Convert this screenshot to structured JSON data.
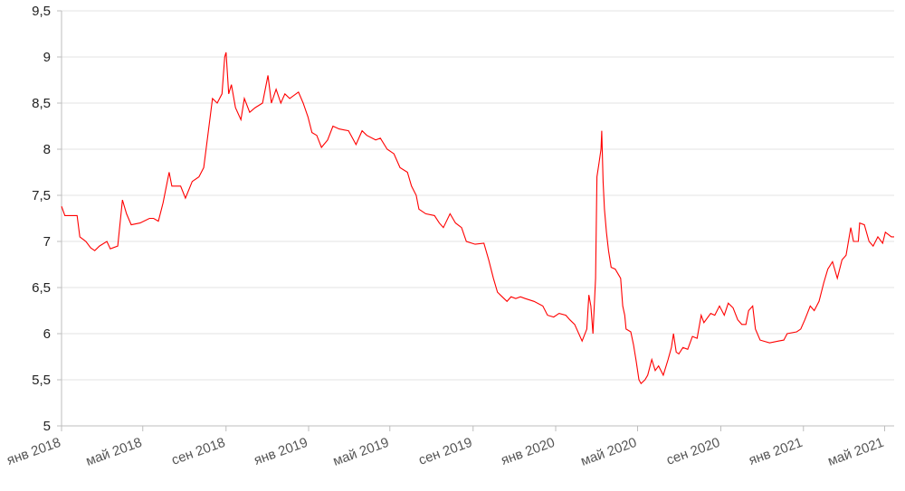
{
  "chart_data": {
    "type": "line",
    "title": "",
    "xlabel": "",
    "ylabel": "",
    "xlim": [
      "2018-01-01",
      "2021-05-15"
    ],
    "ylim": [
      5,
      9.5
    ],
    "grid": "horizontal",
    "line_color": "#ff0000",
    "grid_color": "#e3e3e3",
    "axis_color": "#bdbdbd",
    "yticks": [
      5,
      5.5,
      6,
      6.5,
      7,
      7.5,
      8,
      8.5,
      9,
      9.5
    ],
    "ytick_labels": [
      "5",
      "5,5",
      "6",
      "6,5",
      "7",
      "7,5",
      "8",
      "8,5",
      "9",
      "9,5"
    ],
    "xticks": [
      "2018-01-01",
      "2018-05-01",
      "2018-09-01",
      "2019-01-01",
      "2019-05-01",
      "2019-09-01",
      "2020-01-01",
      "2020-05-01",
      "2020-09-01",
      "2021-01-01",
      "2021-05-01"
    ],
    "xtick_labels": [
      "янв 2018",
      "май 2018",
      "сен 2018",
      "янв 2019",
      "май 2019",
      "сен 2019",
      "янв 2020",
      "май 2020",
      "сен 2020",
      "янв 2021",
      "май 2021"
    ],
    "series": [
      {
        "x": [
          "2018-01-01",
          "2018-01-06",
          "2018-01-24",
          "2018-01-28",
          "2018-02-06",
          "2018-02-13",
          "2018-02-19",
          "2018-02-26",
          "2018-03-09",
          "2018-03-14",
          "2018-03-25",
          "2018-04-01",
          "2018-04-07",
          "2018-04-14",
          "2018-04-27",
          "2018-05-11",
          "2018-05-17",
          "2018-05-24",
          "2018-05-31",
          "2018-06-09",
          "2018-06-13",
          "2018-06-26",
          "2018-07-03",
          "2018-07-13",
          "2018-07-23",
          "2018-07-30",
          "2018-08-06",
          "2018-08-12",
          "2018-08-19",
          "2018-08-26",
          "2018-08-30",
          "2018-09-01",
          "2018-09-05",
          "2018-09-09",
          "2018-09-15",
          "2018-09-23",
          "2018-09-28",
          "2018-10-06",
          "2018-10-14",
          "2018-10-25",
          "2018-11-02",
          "2018-11-07",
          "2018-11-14",
          "2018-11-21",
          "2018-11-27",
          "2018-12-04",
          "2018-12-17",
          "2018-12-24",
          "2018-12-31",
          "2019-01-06",
          "2019-01-13",
          "2019-01-20",
          "2019-01-29",
          "2019-02-06",
          "2019-02-15",
          "2019-03-01",
          "2019-03-12",
          "2019-03-21",
          "2019-03-28",
          "2019-04-10",
          "2019-04-17",
          "2019-04-27",
          "2019-05-07",
          "2019-05-16",
          "2019-05-27",
          "2019-06-02",
          "2019-06-09",
          "2019-06-13",
          "2019-06-23",
          "2019-07-06",
          "2019-07-13",
          "2019-07-19",
          "2019-07-29",
          "2019-08-06",
          "2019-08-15",
          "2019-08-22",
          "2019-09-04",
          "2019-09-17",
          "2019-09-24",
          "2019-10-01",
          "2019-10-07",
          "2019-10-14",
          "2019-10-21",
          "2019-10-27",
          "2019-11-03",
          "2019-11-10",
          "2019-11-17",
          "2019-11-30",
          "2019-12-13",
          "2019-12-20",
          "2019-12-29",
          "2020-01-06",
          "2020-01-16",
          "2020-01-22",
          "2020-01-29",
          "2020-02-09",
          "2020-02-16",
          "2020-02-19",
          "2020-02-22",
          "2020-02-25",
          "2020-02-29",
          "2020-03-02",
          "2020-03-05",
          "2020-03-08",
          "2020-03-09",
          "2020-03-11",
          "2020-03-13",
          "2020-03-16",
          "2020-03-19",
          "2020-03-23",
          "2020-03-29",
          "2020-04-02",
          "2020-04-06",
          "2020-04-09",
          "2020-04-12",
          "2020-04-14",
          "2020-04-21",
          "2020-04-25",
          "2020-04-29",
          "2020-05-03",
          "2020-05-06",
          "2020-05-12",
          "2020-05-16",
          "2020-05-22",
          "2020-05-27",
          "2020-06-01",
          "2020-06-08",
          "2020-06-15",
          "2020-06-20",
          "2020-06-23",
          "2020-06-27",
          "2020-07-01",
          "2020-07-07",
          "2020-07-14",
          "2020-07-21",
          "2020-07-28",
          "2020-08-03",
          "2020-08-07",
          "2020-08-17",
          "2020-08-23",
          "2020-08-30",
          "2020-09-06",
          "2020-09-12",
          "2020-09-19",
          "2020-09-26",
          "2020-10-02",
          "2020-10-08",
          "2020-10-12",
          "2020-10-18",
          "2020-10-22",
          "2020-10-29",
          "2020-11-12",
          "2020-11-25",
          "2020-12-03",
          "2020-12-08",
          "2020-12-22",
          "2020-12-28",
          "2021-01-03",
          "2021-01-11",
          "2021-01-17",
          "2021-01-24",
          "2021-01-31",
          "2021-02-06",
          "2021-02-13",
          "2021-02-20",
          "2021-02-27",
          "2021-03-05",
          "2021-03-12",
          "2021-03-16",
          "2021-03-23",
          "2021-03-25",
          "2021-04-01",
          "2021-04-08",
          "2021-04-14",
          "2021-04-21",
          "2021-04-28",
          "2021-05-02",
          "2021-05-11",
          "2021-05-15"
        ],
        "y": [
          7.38,
          7.28,
          7.28,
          7.05,
          7.0,
          6.93,
          6.9,
          6.95,
          7.0,
          6.92,
          6.95,
          7.45,
          7.3,
          7.18,
          7.2,
          7.25,
          7.25,
          7.22,
          7.42,
          7.75,
          7.6,
          7.6,
          7.47,
          7.65,
          7.7,
          7.8,
          8.2,
          8.55,
          8.5,
          8.6,
          9.0,
          9.05,
          8.6,
          8.7,
          8.45,
          8.32,
          8.55,
          8.4,
          8.45,
          8.5,
          8.8,
          8.5,
          8.65,
          8.5,
          8.6,
          8.55,
          8.62,
          8.5,
          8.35,
          8.18,
          8.15,
          8.02,
          8.1,
          8.25,
          8.22,
          8.2,
          8.05,
          8.2,
          8.15,
          8.1,
          8.12,
          8.0,
          7.95,
          7.8,
          7.75,
          7.6,
          7.5,
          7.35,
          7.3,
          7.28,
          7.2,
          7.15,
          7.3,
          7.2,
          7.15,
          7.0,
          6.97,
          6.98,
          6.8,
          6.6,
          6.45,
          6.4,
          6.35,
          6.4,
          6.38,
          6.4,
          6.38,
          6.35,
          6.3,
          6.2,
          6.18,
          6.22,
          6.2,
          6.15,
          6.1,
          5.92,
          6.05,
          6.42,
          6.3,
          6.0,
          6.6,
          7.7,
          7.85,
          8.0,
          8.2,
          7.65,
          7.35,
          7.1,
          6.9,
          6.72,
          6.7,
          6.65,
          6.6,
          6.3,
          6.2,
          6.05,
          6.02,
          5.88,
          5.7,
          5.5,
          5.46,
          5.5,
          5.55,
          5.72,
          5.6,
          5.65,
          5.55,
          5.72,
          5.85,
          6.0,
          5.8,
          5.78,
          5.85,
          5.83,
          5.97,
          5.95,
          6.2,
          6.12,
          6.22,
          6.2,
          6.3,
          6.2,
          6.33,
          6.28,
          6.15,
          6.1,
          6.1,
          6.25,
          6.3,
          6.05,
          5.93,
          5.9,
          5.92,
          5.93,
          6.0,
          6.02,
          6.05,
          6.15,
          6.3,
          6.25,
          6.35,
          6.55,
          6.7,
          6.78,
          6.6,
          6.8,
          6.85,
          7.15,
          7.0,
          7.0,
          7.2,
          7.18,
          7.0,
          6.95,
          7.05,
          6.98,
          7.1,
          7.05,
          7.05
        ]
      }
    ]
  }
}
